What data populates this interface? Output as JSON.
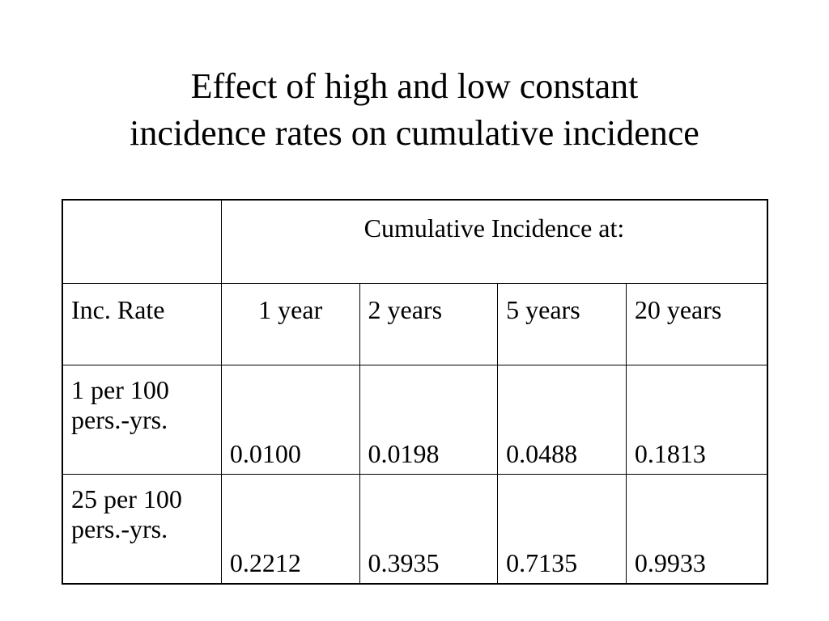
{
  "title": {
    "line1": "Effect of high and low constant",
    "line2": "incidence rates on cumulative incidence"
  },
  "table": {
    "super_header": "Cumulative Incidence at:",
    "row_header_label": "Inc. Rate",
    "columns": [
      "1 year",
      "2 years",
      "5 years",
      "20 years"
    ],
    "rows": [
      {
        "rate_line1": "1 per 100",
        "rate_line2": "pers.-yrs.",
        "values": [
          "0.0100",
          "0.0198",
          "0.0488",
          "0.1813"
        ]
      },
      {
        "rate_line1": "25 per 100",
        "rate_line2": "pers.-yrs.",
        "values": [
          "0.2212",
          "0.3935",
          "0.7135",
          "0.9933"
        ]
      }
    ]
  }
}
